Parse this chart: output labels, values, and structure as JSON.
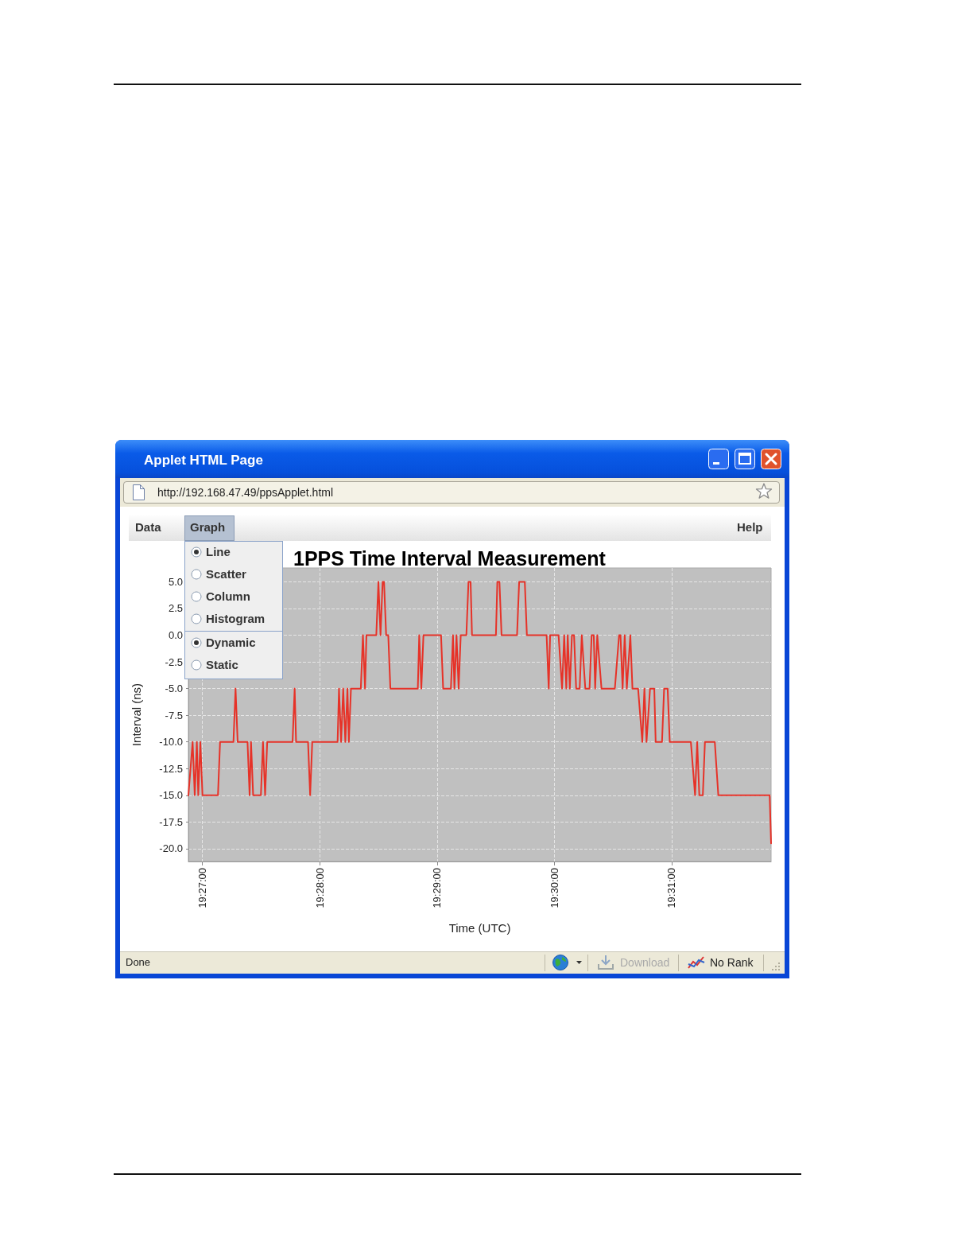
{
  "chart_data": {
    "type": "line",
    "title": "1PPS Time Interval Measurement",
    "xlabel": "Time (UTC)",
    "ylabel": "Interval (ns)",
    "x": [
      19.448,
      19.4486,
      19.4489,
      19.4492,
      19.4494,
      19.4497,
      19.45,
      19.4522,
      19.4525,
      19.4544,
      19.4547,
      19.455,
      19.4564,
      19.4567,
      19.4569,
      19.4572,
      19.4583,
      19.4586,
      19.4589,
      19.4592,
      19.4628,
      19.4631,
      19.4633,
      19.465,
      19.4653,
      19.4656,
      19.4692,
      19.4694,
      19.4697,
      19.47,
      19.4703,
      19.4706,
      19.4708,
      19.4711,
      19.4725,
      19.4728,
      19.4731,
      19.4733,
      19.4747,
      19.475,
      19.4753,
      19.4756,
      19.4758,
      19.4761,
      19.4764,
      19.4767,
      19.4806,
      19.4808,
      19.4811,
      19.4814,
      19.4839,
      19.4842,
      19.4853,
      19.4856,
      19.4858,
      19.4861,
      19.4864,
      19.4867,
      19.4875,
      19.4878,
      19.4881,
      19.4883,
      19.4917,
      19.4919,
      19.4922,
      19.4925,
      19.4947,
      19.495,
      19.4958,
      19.4961,
      19.4989,
      19.4992,
      19.4994,
      19.5006,
      19.5011,
      19.5014,
      19.5017,
      19.5019,
      19.5022,
      19.5025,
      19.5028,
      19.5031,
      19.5036,
      19.5039,
      19.5044,
      19.505,
      19.5053,
      19.5056,
      19.5058,
      19.5061,
      19.5067,
      19.5086,
      19.5092,
      19.5094,
      19.5097,
      19.51,
      19.5103,
      19.5108,
      19.5111,
      19.5119,
      19.5125,
      19.5128,
      19.5131,
      19.5136,
      19.5142,
      19.5144,
      19.5153,
      19.5156,
      19.5161,
      19.5164,
      19.5194,
      19.52,
      19.5203,
      19.5206,
      19.5211,
      19.5214,
      19.5228,
      19.5233,
      19.5306,
      19.5308
    ],
    "values": [
      -15,
      -10,
      -15,
      -10,
      -15,
      -10,
      -15,
      -15,
      -10,
      -10,
      -5,
      -10,
      -10,
      -15,
      -10,
      -15,
      -15,
      -10,
      -15,
      -10,
      -10,
      -5,
      -10,
      -10,
      -15,
      -10,
      -10,
      -5,
      -10,
      -5,
      -10,
      -5,
      -10,
      -5,
      -5,
      0,
      -5,
      0,
      0,
      5,
      0,
      5,
      5,
      0,
      0,
      -5,
      -5,
      0,
      -5,
      0,
      0,
      -5,
      -5,
      0,
      -5,
      0,
      -5,
      0,
      0,
      5,
      5,
      0,
      0,
      5,
      5,
      0,
      0,
      5,
      5,
      0,
      0,
      -5,
      0,
      0,
      -5,
      0,
      -5,
      0,
      -5,
      0,
      0,
      -5,
      -5,
      0,
      -5,
      -5,
      0,
      0,
      -5,
      0,
      -5,
      -5,
      0,
      0,
      -5,
      0,
      -5,
      0,
      -5,
      -5,
      -10,
      -5,
      -10,
      -5,
      -5,
      -10,
      -10,
      -5,
      -5,
      -10,
      -10,
      -15,
      -10,
      -15,
      -15,
      -10,
      -10,
      -15,
      -15,
      -19.5
    ],
    "color": "#e63228",
    "xlim": [
      19.448,
      19.5308
    ],
    "xticks": [
      {
        "value": 19.45,
        "label": "19:27:00"
      },
      {
        "value": 19.46667,
        "label": "19:28:00"
      },
      {
        "value": 19.48333,
        "label": "19:29:00"
      },
      {
        "value": 19.5,
        "label": "19:30:00"
      },
      {
        "value": 19.51667,
        "label": "19:31:00"
      }
    ],
    "ylim": [
      -21.2,
      6.3
    ],
    "yticks": [
      {
        "value": -20,
        "label": "-20.0"
      },
      {
        "value": -17.5,
        "label": "-17.5"
      },
      {
        "value": -15,
        "label": "-15.0"
      },
      {
        "value": -12.5,
        "label": "-12.5"
      },
      {
        "value": -10,
        "label": "-10.0"
      },
      {
        "value": -7.5,
        "label": "-7.5"
      },
      {
        "value": -5,
        "label": "-5.0"
      },
      {
        "value": -2.5,
        "label": "-2.5"
      },
      {
        "value": 0,
        "label": "0.0"
      },
      {
        "value": 2.5,
        "label": "2.5"
      },
      {
        "value": 5,
        "label": "5.0"
      }
    ],
    "grid": true,
    "marker": "none",
    "line_style": "solid",
    "annotations": [
      "Applet HTML Page",
      "http://192.168.47.49/ppsApplet.html",
      "Data",
      "Graph",
      "Help",
      "Line",
      "Scatter",
      "Column",
      "Histogram",
      "Dynamic",
      "Static",
      "Done",
      "Download",
      "No Rank"
    ]
  }
}
